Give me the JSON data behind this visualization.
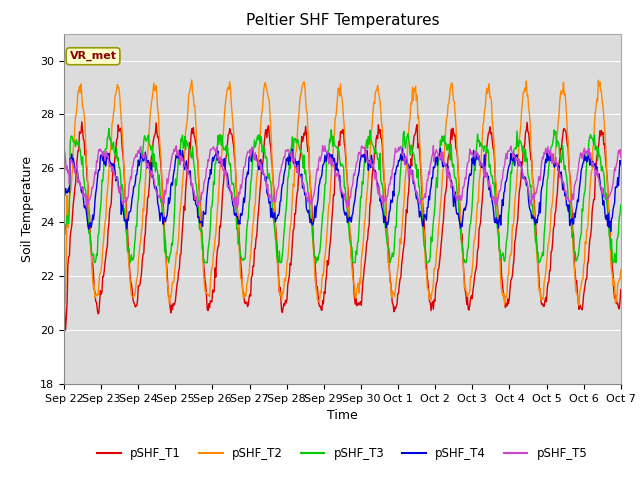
{
  "title": "Peltier SHF Temperatures",
  "ylabel": "Soil Temperature",
  "xlabel": "Time",
  "annotation": "VR_met",
  "ylim": [
    18,
    31
  ],
  "yticks": [
    18,
    20,
    22,
    24,
    26,
    28,
    30
  ],
  "xtick_labels": [
    "Sep 22",
    "Sep 23",
    "Sep 24",
    "Sep 25",
    "Sep 26",
    "Sep 27",
    "Sep 28",
    "Sep 29",
    "Sep 30",
    "Oct 1",
    "Oct 2",
    "Oct 3",
    "Oct 4",
    "Oct 5",
    "Oct 6",
    "Oct 7"
  ],
  "series_names": [
    "pSHF_T1",
    "pSHF_T2",
    "pSHF_T3",
    "pSHF_T4",
    "pSHF_T5"
  ],
  "series_colors": [
    "#dd0000",
    "#ff8800",
    "#00cc00",
    "#0000dd",
    "#cc44cc"
  ],
  "plot_bg_color": "#dcdcdc",
  "fig_bg_color": "#ffffff",
  "title_fontsize": 11,
  "label_fontsize": 9,
  "tick_fontsize": 8,
  "linewidth": 1.0,
  "annotation_facecolor": "#ffffcc",
  "annotation_edgecolor": "#999900",
  "annotation_textcolor": "#880000",
  "annotation_fontsize": 8
}
